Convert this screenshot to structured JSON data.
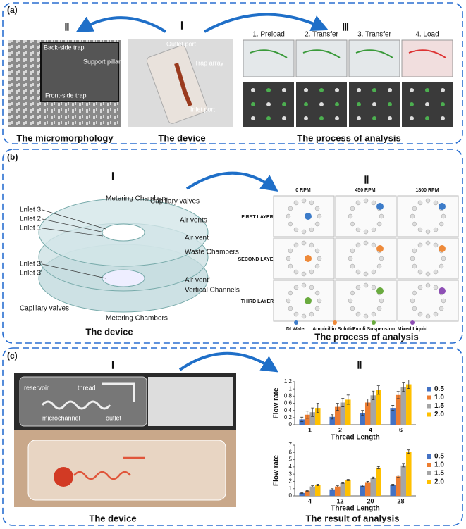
{
  "panel_a": {
    "label": "(a)",
    "roman": [
      "Ⅰ",
      "Ⅱ",
      "Ⅲ"
    ],
    "micro_labels": [
      "Back-side trap",
      "Support pillars",
      "Front-side trap"
    ],
    "device_labels": [
      "Outlet port",
      "Trap array",
      "Inlet port"
    ],
    "steps": [
      "1. Preload",
      "2. Transfer",
      "3. Transfer",
      "4. Load"
    ],
    "captions": [
      "The micromorphology",
      "The device",
      "The process of analysis"
    ]
  },
  "panel_b": {
    "label": "(b)",
    "roman": [
      "Ⅰ",
      "Ⅱ"
    ],
    "device_labels": [
      "Metering Chambers",
      "Capillary valves",
      "Lnlet 3",
      "Lnlet 2",
      "Lnlet 1",
      "Air vents",
      "Air vent",
      "Waste Chambers",
      "Lnlet 3'",
      "Lnlet 3'",
      "Air vent'",
      "Vertical Channels",
      "Capillary valves",
      "Metering Chambers"
    ],
    "speeds": [
      "0 RPM",
      "450 RPM",
      "1800 RPM"
    ],
    "layers": [
      "FIRST LAYER",
      "SECOND LAYER",
      "THIRD LAYER"
    ],
    "legend": [
      {
        "label": "DI Water",
        "color": "#3d7cc9"
      },
      {
        "label": "Ampicillin Solution",
        "color": "#ee8a3a"
      },
      {
        "label": "E.coli Suspension",
        "color": "#6aab3f"
      },
      {
        "label": "Mixed Liquid",
        "color": "#8e4fb5"
      }
    ],
    "captions": [
      "The device",
      "The process of analysis"
    ]
  },
  "panel_c": {
    "label": "(c)",
    "roman": [
      "Ⅰ",
      "Ⅱ"
    ],
    "device_labels": [
      "reservoir",
      "thread",
      "microchannel",
      "outlet"
    ],
    "captions": [
      "The device",
      "The result of analysis"
    ]
  },
  "chart_data": [
    {
      "type": "bar",
      "x_label": "Thread Length",
      "y_label": "Flow rate",
      "categories": [
        "1",
        "2",
        "4",
        "6"
      ],
      "ylim": [
        0,
        1.2
      ],
      "yticks": [
        0,
        0.2,
        0.4,
        0.6,
        0.8,
        1,
        1.2
      ],
      "series": [
        {
          "name": "0.5",
          "color": "#4472c4",
          "values": [
            0.15,
            0.22,
            0.33,
            0.47
          ],
          "errors": [
            0.06,
            0.06,
            0.07,
            0.07
          ]
        },
        {
          "name": "1.0",
          "color": "#ed7d31",
          "values": [
            0.28,
            0.5,
            0.62,
            0.83
          ],
          "errors": [
            0.1,
            0.1,
            0.1,
            0.1
          ]
        },
        {
          "name": "1.5",
          "color": "#a5a5a5",
          "values": [
            0.35,
            0.62,
            0.82,
            1.05
          ],
          "errors": [
            0.12,
            0.12,
            0.12,
            0.12
          ]
        },
        {
          "name": "2.0",
          "color": "#ffc000",
          "values": [
            0.47,
            0.7,
            0.97,
            1.13
          ],
          "errors": [
            0.13,
            0.13,
            0.12,
            0.12
          ]
        }
      ]
    },
    {
      "type": "bar",
      "x_label": "Thread Length",
      "y_label": "Flow rate",
      "categories": [
        "4",
        "12",
        "20",
        "28"
      ],
      "ylim": [
        0,
        7
      ],
      "yticks": [
        0,
        1,
        2,
        3,
        4,
        5,
        6,
        7
      ],
      "series": [
        {
          "name": "0.5",
          "color": "#4472c4",
          "values": [
            0.4,
            0.9,
            1.4,
            1.5
          ],
          "errors": [
            0.05,
            0.1,
            0.1,
            0.1
          ]
        },
        {
          "name": "1.0",
          "color": "#ed7d31",
          "values": [
            0.7,
            1.3,
            1.9,
            2.7
          ],
          "errors": [
            0.05,
            0.1,
            0.1,
            0.15
          ]
        },
        {
          "name": "1.5",
          "color": "#a5a5a5",
          "values": [
            1.3,
            1.8,
            2.5,
            4.2
          ],
          "errors": [
            0.1,
            0.1,
            0.1,
            0.2
          ]
        },
        {
          "name": "2.0",
          "color": "#ffc000",
          "values": [
            1.5,
            2.2,
            3.9,
            6.1
          ],
          "errors": [
            0.1,
            0.1,
            0.15,
            0.25
          ]
        }
      ]
    }
  ]
}
